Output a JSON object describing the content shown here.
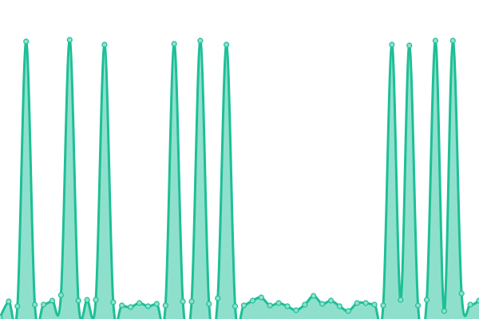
{
  "chart_data": {
    "type": "area",
    "title": "",
    "xlabel": "",
    "ylabel": "",
    "x": [
      0,
      1,
      2,
      3,
      4,
      5,
      6,
      7,
      8,
      9,
      10,
      11,
      12,
      13,
      14,
      15,
      16,
      17,
      18,
      19,
      20,
      21,
      22,
      23,
      24,
      25,
      26,
      27,
      28,
      29,
      30,
      31,
      32,
      33,
      34,
      35,
      36,
      37,
      38,
      39,
      40,
      41,
      42,
      43,
      44,
      45,
      46,
      47,
      48,
      49,
      50,
      51,
      52,
      53,
      54,
      55
    ],
    "series": [
      {
        "values": [
          2,
          22,
          16,
          348,
          18,
          18,
          23,
          30,
          350,
          23,
          24,
          24,
          344,
          21,
          17,
          15,
          20,
          16,
          19,
          17,
          345,
          22,
          22,
          349,
          19,
          26,
          344,
          16,
          17,
          23,
          27,
          17,
          20,
          16,
          11,
          18,
          29,
          19,
          23,
          16,
          10,
          20,
          20,
          18,
          17,
          344,
          24,
          343,
          17,
          24,
          349,
          10,
          349,
          32,
          18,
          23
        ]
      }
    ],
    "ylim": [
      0,
      400
    ],
    "grid": false,
    "axes_visible": false,
    "smooth": true,
    "markers": true,
    "colors": {
      "line": "#1dbf96",
      "fill": "#8ee0cc",
      "marker_fill": "#8ee0cc"
    }
  }
}
